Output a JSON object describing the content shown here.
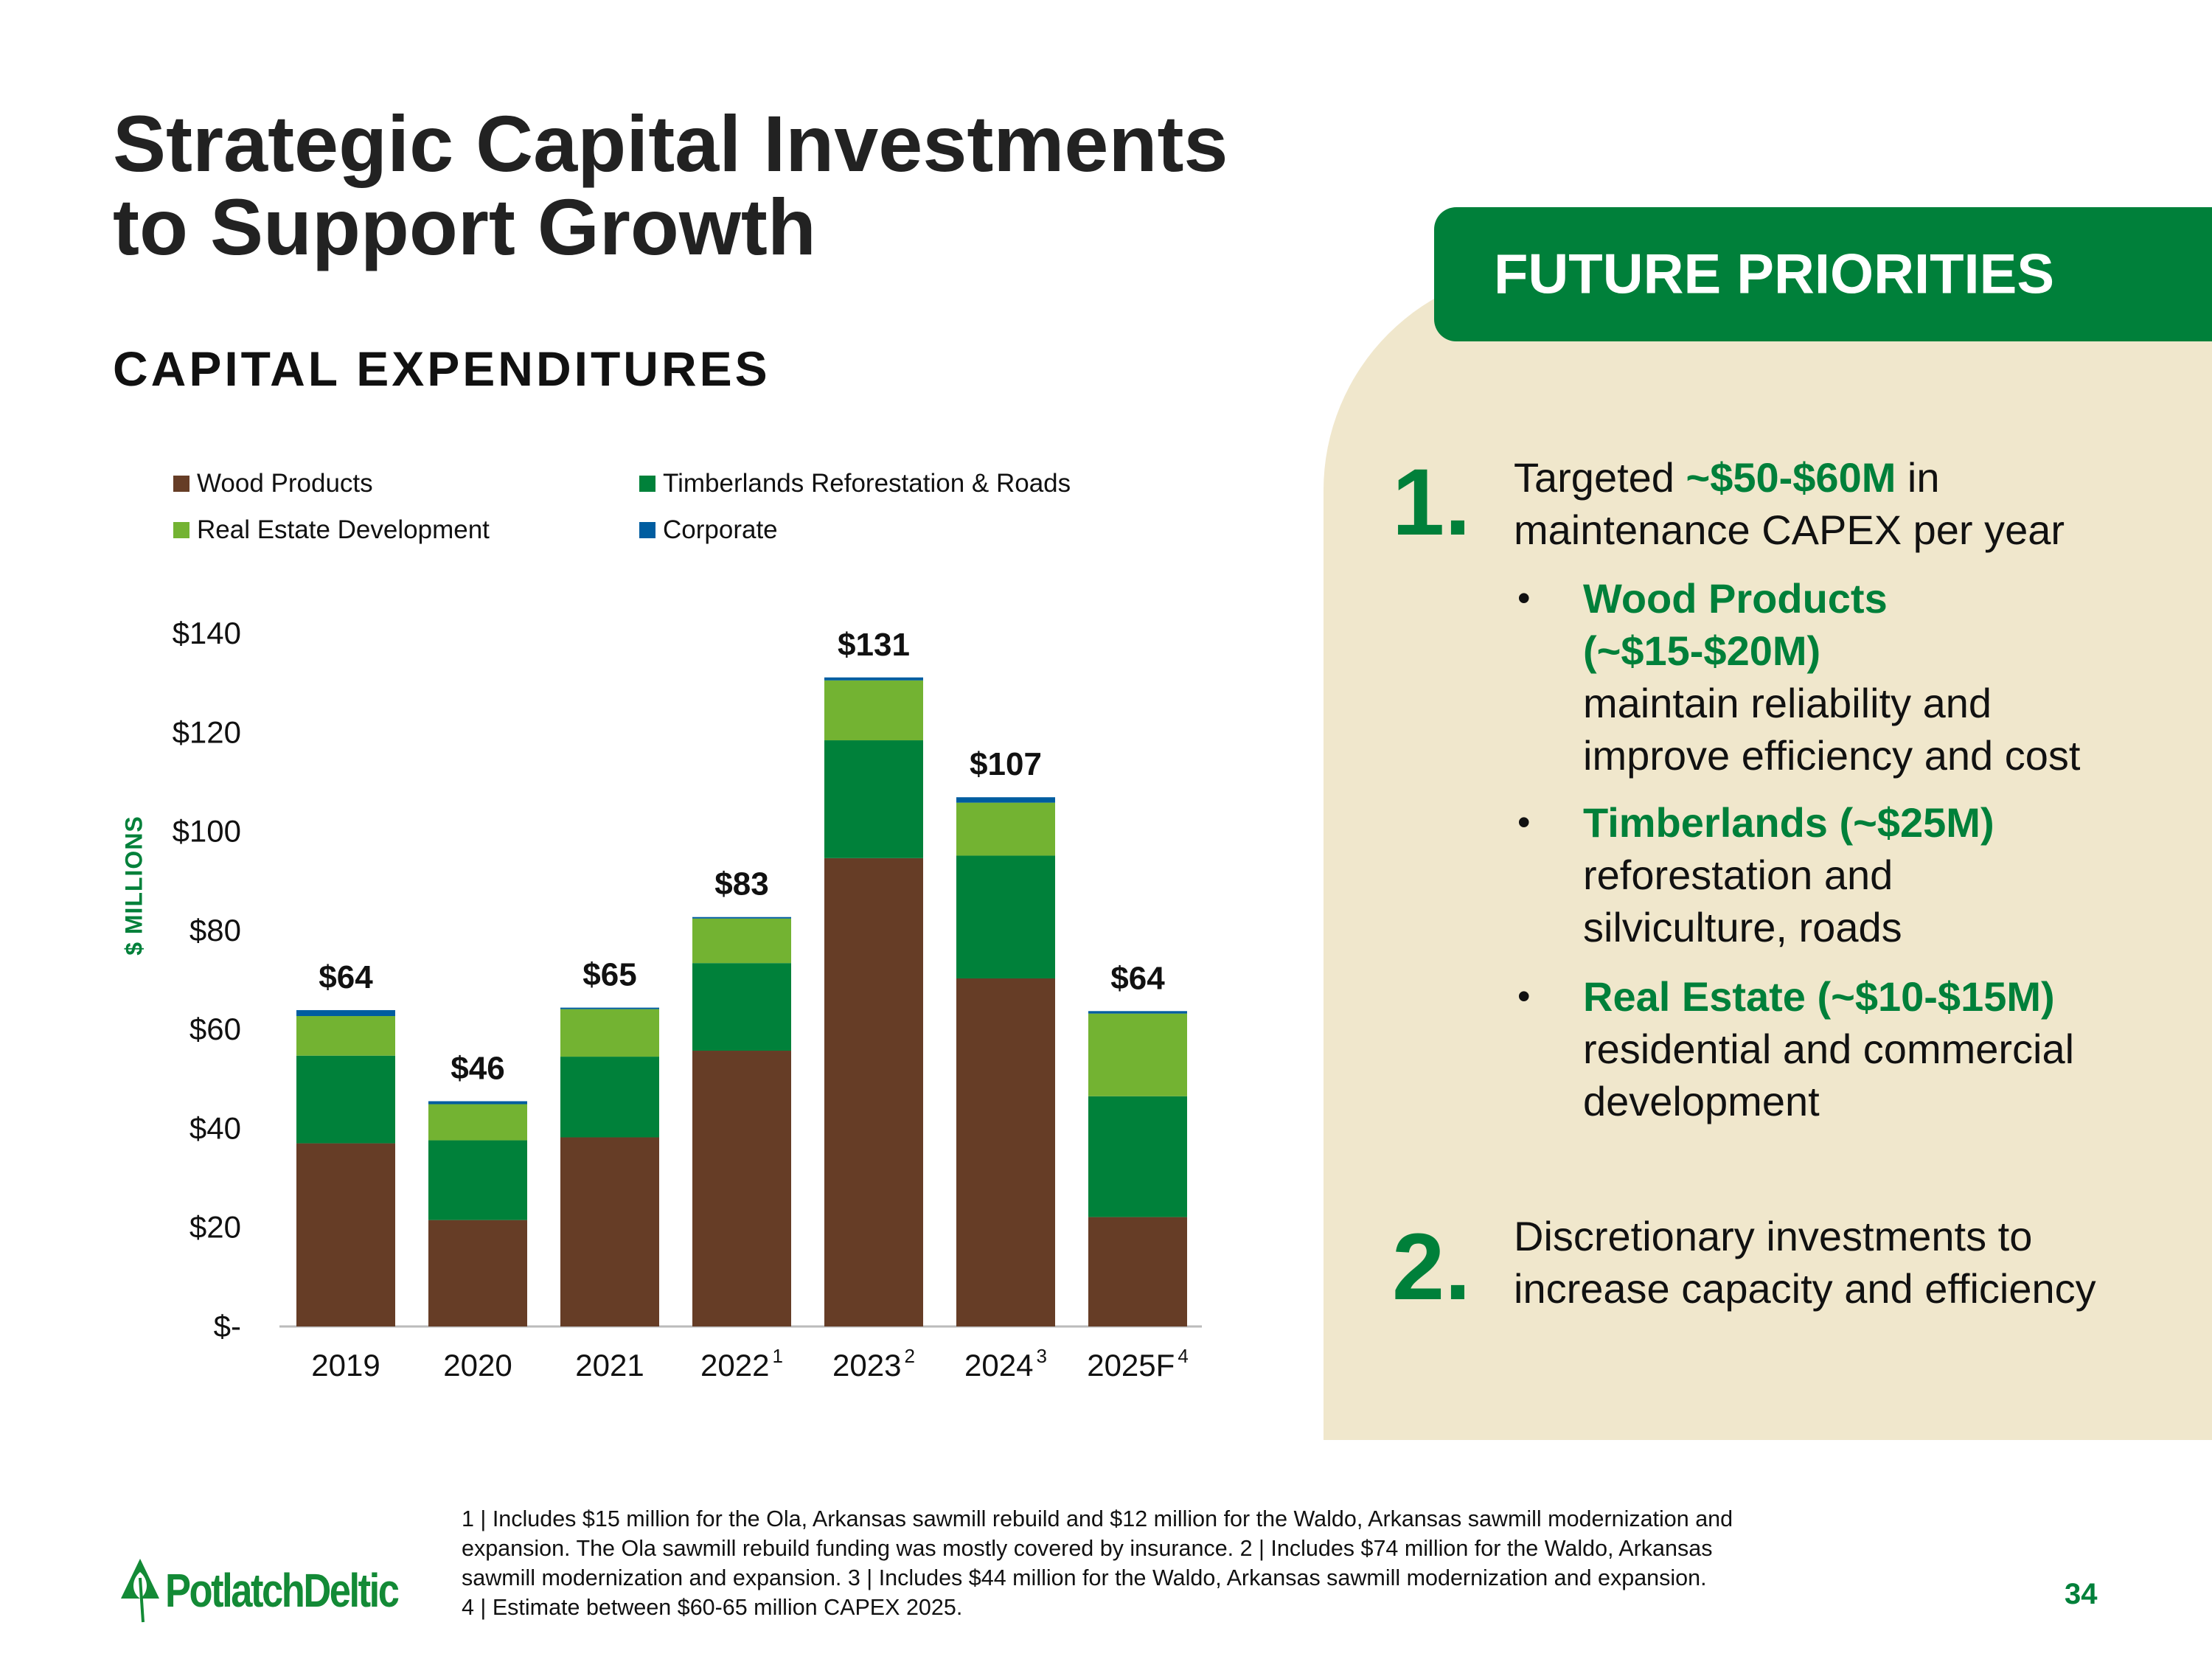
{
  "title": {
    "line1": "Strategic Capital Investments",
    "line2": "to Support Growth"
  },
  "subtitle": "CAPITAL EXPENDITURES",
  "chart_data": {
    "type": "bar",
    "stacked": true,
    "title": "CAPITAL EXPENDITURES",
    "xlabel": "",
    "ylabel": "$ MILLIONS",
    "ylim": [
      0,
      140
    ],
    "yticks": [
      0,
      20,
      40,
      60,
      80,
      100,
      120,
      140
    ],
    "ytick_labels": [
      "$-",
      "$20",
      "$40",
      "$60",
      "$80",
      "$100",
      "$120",
      "$140"
    ],
    "categories": [
      "2019",
      "2020",
      "2021",
      "2022",
      "2023",
      "2024",
      "2025F"
    ],
    "category_footnotes": [
      "",
      "",
      "",
      "1",
      "2",
      "3",
      "4"
    ],
    "legend_position": "top",
    "series": [
      {
        "name": "Wood Products",
        "color": "#663D26",
        "values": [
          37.0,
          21.5,
          38.2,
          55.7,
          94.6,
          70.3,
          22.1
        ]
      },
      {
        "name": "Timberlands Reforestation & Roads",
        "color": "#00813A",
        "values": [
          17.7,
          16.1,
          16.3,
          17.7,
          23.8,
          24.8,
          24.4
        ]
      },
      {
        "name": "Real Estate Development",
        "color": "#73B332",
        "values": [
          8.0,
          7.3,
          9.6,
          9.0,
          12.1,
          10.7,
          16.7
        ]
      },
      {
        "name": "Corporate",
        "color": "#005DA0",
        "values": [
          1.2,
          0.6,
          0.3,
          0.3,
          0.6,
          1.1,
          0.5
        ]
      }
    ],
    "totals": [
      64,
      46,
      65,
      83,
      131,
      107,
      64
    ],
    "total_labels": [
      "$64",
      "$46",
      "$65",
      "$83",
      "$131",
      "$107",
      "$64"
    ]
  },
  "panel": {
    "header": "FUTURE PRIORITIES",
    "item1": {
      "number": "1.",
      "text_a": "Targeted ",
      "highlight": "~$50-$60M",
      "text_b": " in maintenance CAPEX per year",
      "bullets": [
        {
          "marker": "•",
          "title": "Wood Products (~$15-$20M)",
          "desc": "maintain reliability and improve efficiency and cost"
        },
        {
          "marker": "•",
          "title": "Timberlands (~$25M)",
          "desc": "reforestation and silviculture, roads"
        },
        {
          "marker": "•",
          "title": "Real Estate (~$10-$15M)",
          "desc": "residential and commercial development"
        }
      ]
    },
    "item2": {
      "number": "2.",
      "text": "Discretionary investments to increase capacity and efficiency"
    }
  },
  "footnotes": [
    "1 | Includes $15 million for the Ola, Arkansas sawmill rebuild and $12 million for the Waldo, Arkansas sawmill modernization and",
    "expansion. The Ola sawmill rebuild funding was mostly covered by insurance.  2 | Includes $74 million for the Waldo, Arkansas",
    "sawmill modernization and expansion.  3 | Includes $44 million for the Waldo, Arkansas sawmill modernization and expansion.",
    "4 | Estimate between $60-65 million CAPEX 2025."
  ],
  "logo": "PotlatchDeltic",
  "page_number": "34"
}
